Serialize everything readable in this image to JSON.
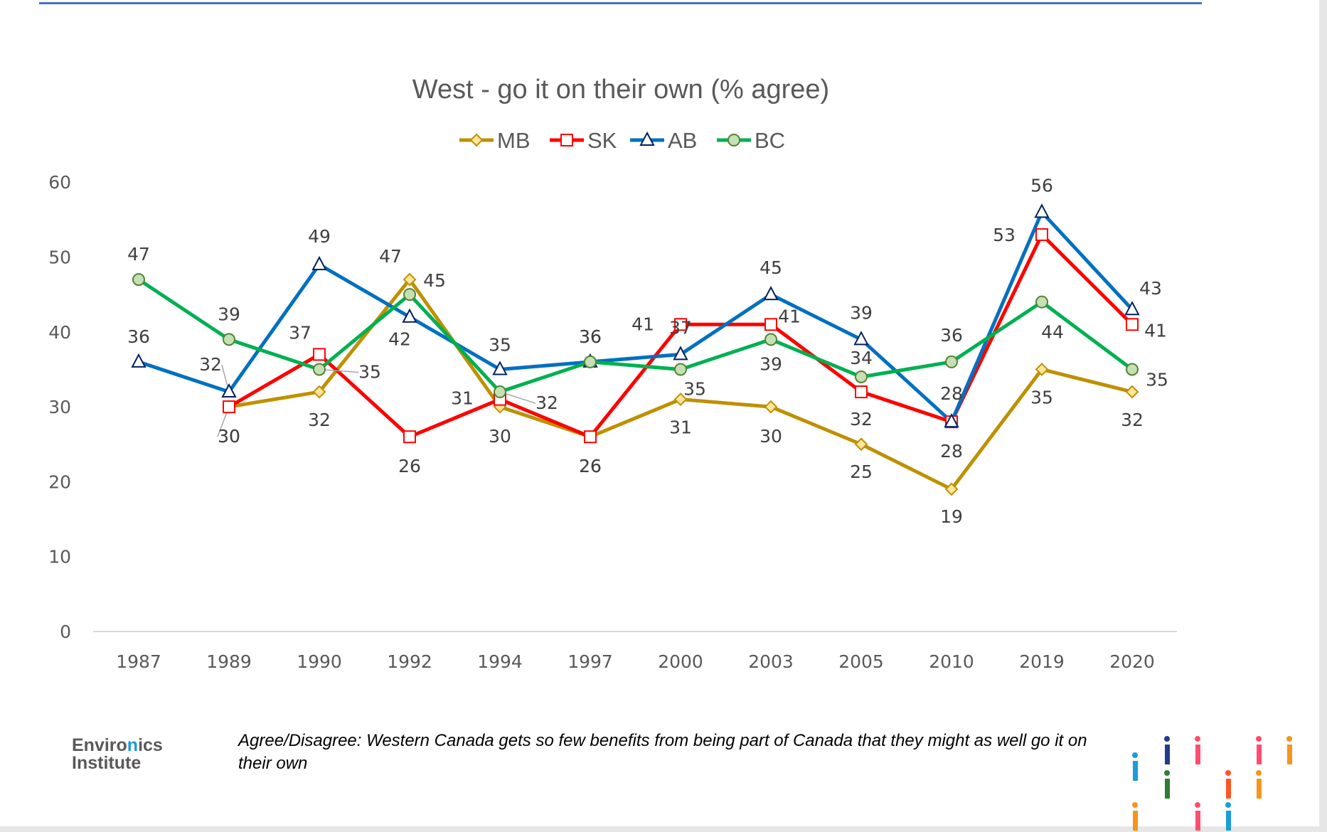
{
  "chart_data": {
    "type": "line",
    "title": "West - go it on their own (% agree)",
    "categories": [
      "1987",
      "1989",
      "1990",
      "1992",
      "1994",
      "1997",
      "2000",
      "2003",
      "2005",
      "2010",
      "2019",
      "2020"
    ],
    "ylim": [
      0,
      60
    ],
    "yticks": [
      "0",
      "10",
      "20",
      "30",
      "40",
      "50",
      "60"
    ],
    "grid": false,
    "legend_position": "top",
    "series": [
      {
        "name": "MB",
        "color": "#bf9000",
        "marker": "diamond",
        "values": [
          null,
          30,
          32,
          47,
          30,
          26,
          31,
          30,
          25,
          19,
          35,
          32
        ],
        "labels": [
          "",
          "30",
          "32",
          "47",
          "30",
          "26",
          "31",
          "30",
          "25",
          "19",
          "35",
          "32"
        ]
      },
      {
        "name": "SK",
        "color": "#ff0000",
        "marker": "square",
        "values": [
          null,
          30,
          37,
          26,
          31,
          26,
          41,
          41,
          32,
          28,
          53,
          41
        ],
        "labels": [
          "",
          "30",
          "37",
          "26",
          "31",
          "26",
          "41",
          "41",
          "32",
          "28",
          "53",
          "41"
        ]
      },
      {
        "name": "AB",
        "color": "#0070c0",
        "marker": "triangle",
        "values": [
          36,
          32,
          49,
          42,
          35,
          36,
          37,
          45,
          39,
          28,
          56,
          43
        ],
        "labels": [
          "36",
          "32",
          "49",
          "42",
          "35",
          "36",
          "37",
          "45",
          "39",
          "28",
          "56",
          "43"
        ]
      },
      {
        "name": "BC",
        "color": "#00b050",
        "marker": "circle",
        "values": [
          47,
          39,
          35,
          45,
          32,
          36,
          35,
          39,
          34,
          36,
          44,
          35
        ],
        "labels": [
          "47",
          "39",
          "35",
          "45",
          "32",
          "36",
          "35",
          "39",
          "34",
          "36",
          "44",
          "35"
        ]
      }
    ]
  },
  "footnote": "Agree/Disagree: Western Canada gets so few benefits from being part of Canada that they might as well go it on their own",
  "logo": {
    "line1_a": "Enviro",
    "line1_b": "n",
    "line1_c": "ics",
    "line2": "Institute"
  }
}
